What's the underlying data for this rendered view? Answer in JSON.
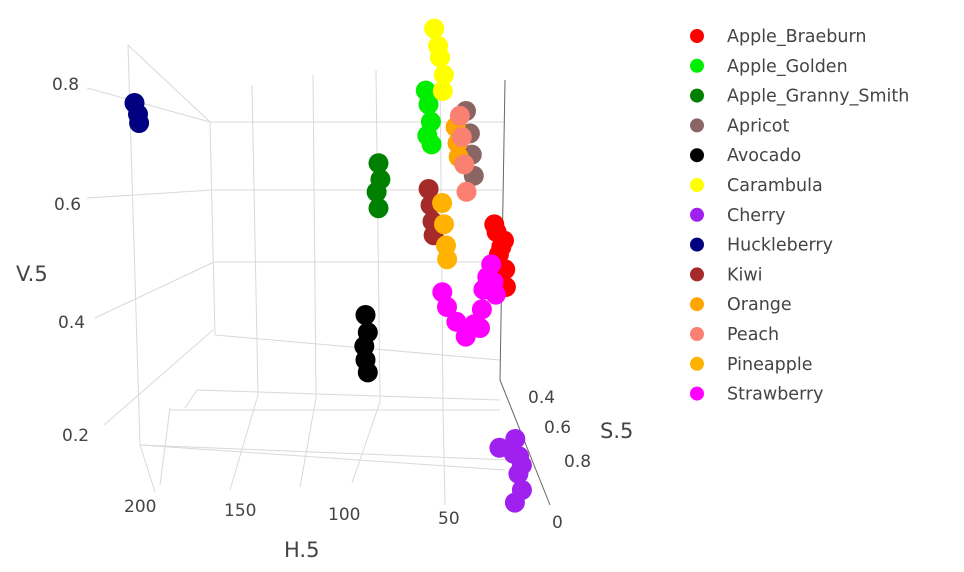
{
  "chart_data": {
    "type": "scatter3d",
    "title": "",
    "axes": {
      "x": {
        "title": "H.5",
        "ticks": [
          "200",
          "150",
          "100",
          "50",
          "0"
        ]
      },
      "y": {
        "title": "S.5",
        "ticks": [
          "0.4",
          "0.6",
          "0.8"
        ]
      },
      "z": {
        "title": "V.5",
        "ticks": [
          "0.8",
          "0.6",
          "0.4",
          "0.2"
        ]
      }
    },
    "legend": {
      "placement": "right",
      "items": [
        {
          "name": "Apple_Braeburn",
          "color": "#ff0000"
        },
        {
          "name": "Apple_Golden",
          "color": "#00ee00"
        },
        {
          "name": "Apple_Granny_Smith",
          "color": "#008000"
        },
        {
          "name": "Apricot",
          "color": "#8b6464"
        },
        {
          "name": "Avocado",
          "color": "#000000"
        },
        {
          "name": "Carambula",
          "color": "#ffff00"
        },
        {
          "name": "Cherry",
          "color": "#a020f0"
        },
        {
          "name": "Huckleberry",
          "color": "#000080"
        },
        {
          "name": "Kiwi",
          "color": "#a52a2a"
        },
        {
          "name": "Orange",
          "color": "#ffa500"
        },
        {
          "name": "Peach",
          "color": "#fa8072"
        },
        {
          "name": "Pineapple",
          "color": "#ffb300"
        },
        {
          "name": "Strawberry",
          "color": "#ff00ff"
        }
      ]
    },
    "series": [
      {
        "name": "Apple_Braeburn",
        "color": "#ff0000",
        "points": [
          [
            10,
            0.62,
            0.57
          ],
          [
            8,
            0.6,
            0.55
          ],
          [
            5,
            0.6,
            0.52
          ],
          [
            3,
            0.62,
            0.48
          ],
          [
            2,
            0.6,
            0.44
          ],
          [
            6,
            0.58,
            0.5
          ],
          [
            4,
            0.63,
            0.54
          ],
          [
            7,
            0.61,
            0.46
          ]
        ]
      },
      {
        "name": "Apple_Golden",
        "color": "#00ee00",
        "points": [
          [
            48,
            0.38,
            0.78
          ],
          [
            46,
            0.37,
            0.75
          ],
          [
            45,
            0.39,
            0.72
          ],
          [
            47,
            0.38,
            0.69
          ],
          [
            44,
            0.37,
            0.67
          ]
        ]
      },
      {
        "name": "Apple_Granny_Smith",
        "color": "#008000",
        "points": [
          [
            78,
            0.36,
            0.63
          ],
          [
            77,
            0.37,
            0.6
          ],
          [
            79,
            0.35,
            0.57
          ],
          [
            78,
            0.36,
            0.54
          ]
        ]
      },
      {
        "name": "Apricot",
        "color": "#8b6464",
        "points": [
          [
            20,
            0.3,
            0.72
          ],
          [
            18,
            0.32,
            0.68
          ],
          [
            17,
            0.33,
            0.64
          ],
          [
            16,
            0.34,
            0.6
          ]
        ]
      },
      {
        "name": "Avocado",
        "color": "#000000",
        "points": [
          [
            90,
            0.5,
            0.36
          ],
          [
            89,
            0.52,
            0.33
          ],
          [
            91,
            0.51,
            0.3
          ],
          [
            90,
            0.5,
            0.27
          ],
          [
            89,
            0.52,
            0.25
          ]
        ]
      },
      {
        "name": "Carambula",
        "color": "#ffff00",
        "points": [
          [
            40,
            0.28,
            0.88
          ],
          [
            38,
            0.3,
            0.85
          ],
          [
            36,
            0.27,
            0.82
          ],
          [
            34,
            0.29,
            0.79
          ],
          [
            35,
            0.3,
            0.76
          ]
        ]
      },
      {
        "name": "Cherry",
        "color": "#a020f0",
        "points": [
          [
            5,
            0.95,
            0.22
          ],
          [
            3,
            0.97,
            0.19
          ],
          [
            4,
            0.99,
            0.16
          ],
          [
            2,
            1.0,
            0.13
          ],
          [
            6,
            0.98,
            0.1
          ],
          [
            1,
            0.96,
            0.17
          ],
          [
            7,
            0.99,
            0.2
          ],
          [
            15,
            0.94,
            0.2
          ]
        ]
      },
      {
        "name": "Huckleberry",
        "color": "#000080",
        "points": [
          [
            230,
            0.15,
            0.7
          ],
          [
            228,
            0.16,
            0.68
          ],
          [
            227,
            0.15,
            0.66
          ]
        ]
      },
      {
        "name": "Kiwi",
        "color": "#a52a2a",
        "points": [
          [
            48,
            0.45,
            0.6
          ],
          [
            47,
            0.46,
            0.57
          ],
          [
            46,
            0.47,
            0.54
          ],
          [
            45,
            0.46,
            0.51
          ]
        ]
      },
      {
        "name": "Orange",
        "color": "#ffa500",
        "points": [
          [
            28,
            0.35,
            0.7
          ],
          [
            27,
            0.36,
            0.67
          ],
          [
            26,
            0.35,
            0.64
          ]
        ]
      },
      {
        "name": "Peach",
        "color": "#fa8072",
        "points": [
          [
            25,
            0.34,
            0.72
          ],
          [
            24,
            0.35,
            0.68
          ],
          [
            23,
            0.37,
            0.63
          ],
          [
            22,
            0.39,
            0.58
          ]
        ]
      },
      {
        "name": "Pineapple",
        "color": "#ffb300",
        "points": [
          [
            38,
            0.4,
            0.56
          ],
          [
            37,
            0.41,
            0.52
          ],
          [
            36,
            0.42,
            0.48
          ],
          [
            35,
            0.41,
            0.45
          ]
        ]
      },
      {
        "name": "Strawberry",
        "color": "#ff00ff",
        "points": [
          [
            12,
            0.62,
            0.49
          ],
          [
            14,
            0.6,
            0.46
          ],
          [
            16,
            0.58,
            0.43
          ],
          [
            18,
            0.62,
            0.4
          ],
          [
            24,
            0.66,
            0.38
          ],
          [
            30,
            0.68,
            0.36
          ],
          [
            35,
            0.64,
            0.38
          ],
          [
            40,
            0.6,
            0.4
          ],
          [
            42,
            0.56,
            0.42
          ],
          [
            20,
            0.65,
            0.37
          ],
          [
            10,
            0.6,
            0.45
          ],
          [
            8,
            0.58,
            0.42
          ]
        ]
      }
    ]
  }
}
